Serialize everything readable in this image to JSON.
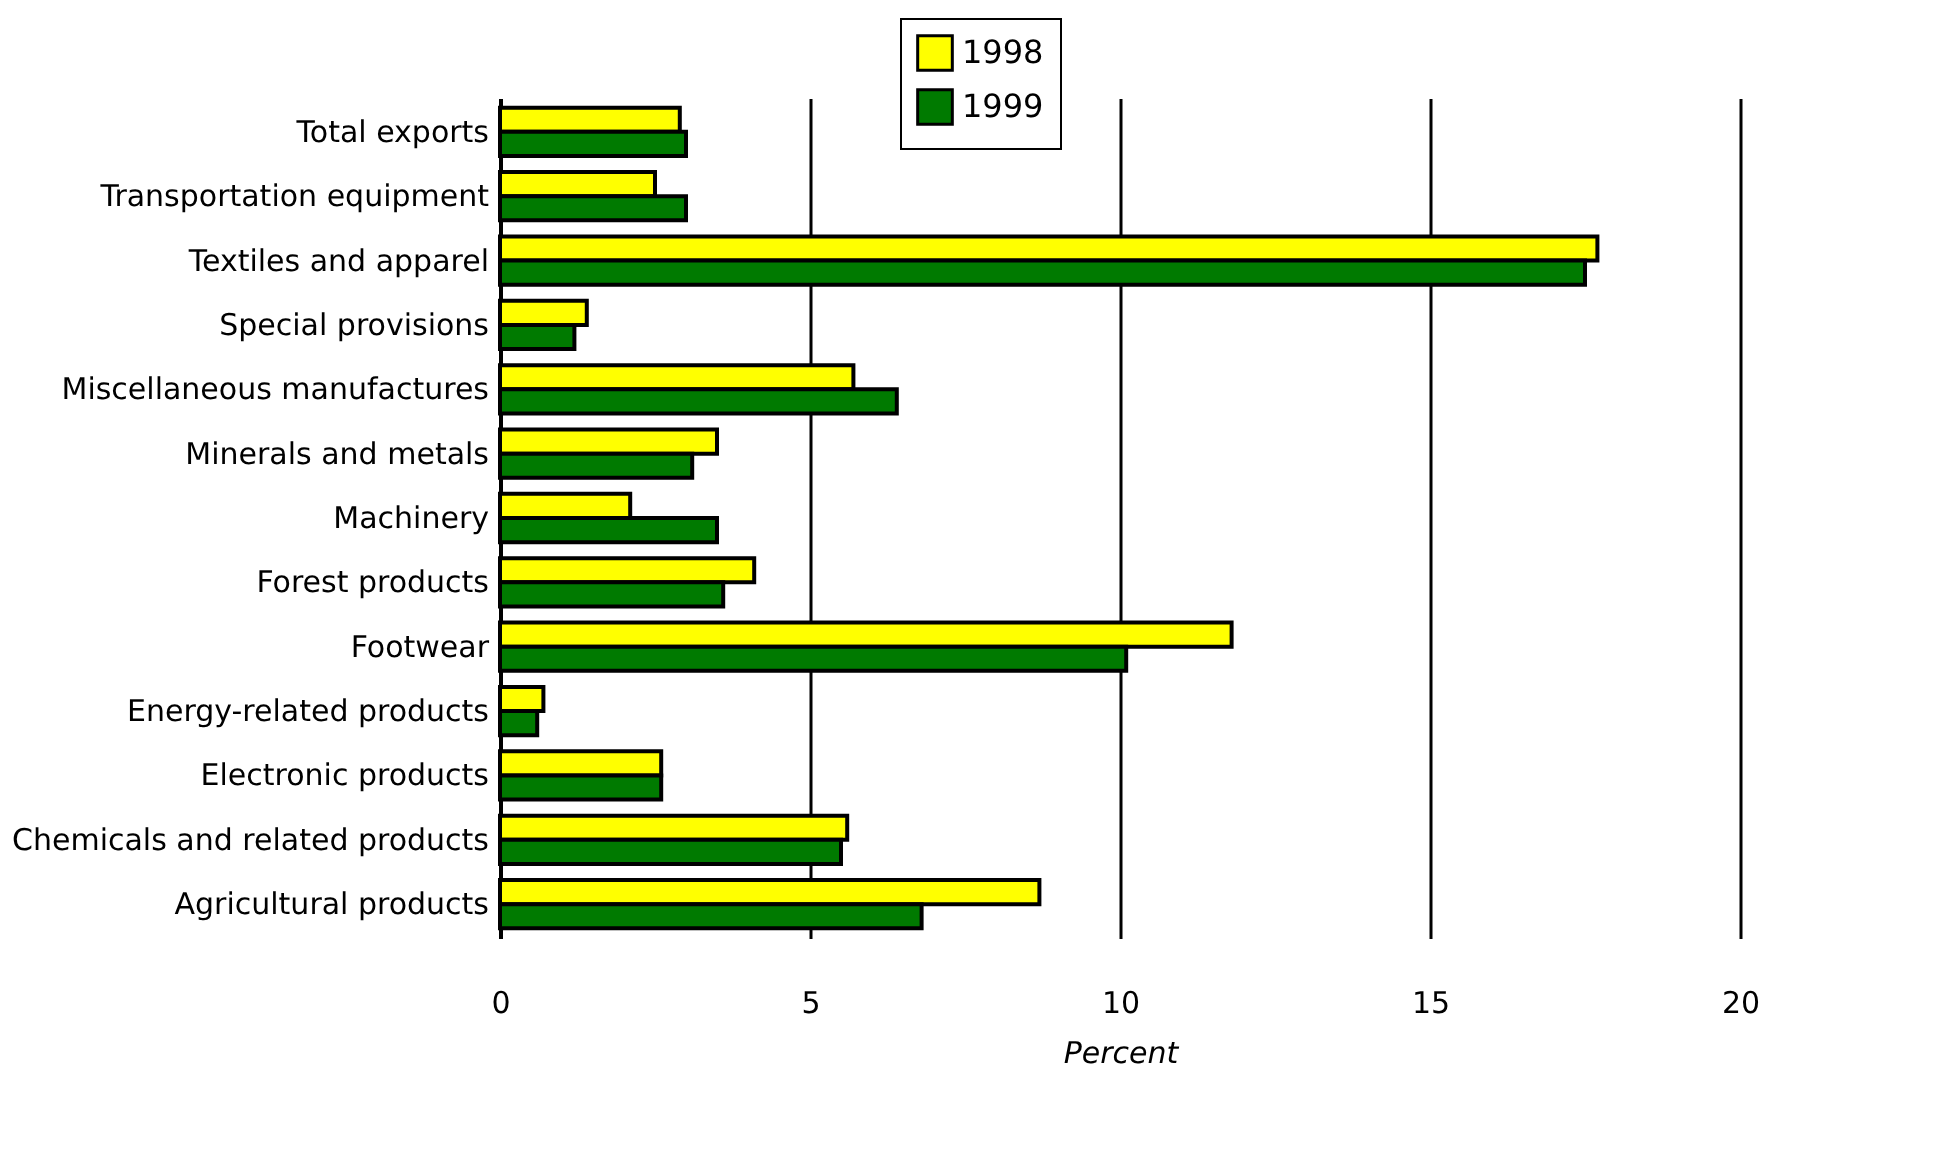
{
  "chart_data": {
    "type": "bar",
    "orientation": "horizontal",
    "xlabel": "Percent",
    "categories": [
      "Total exports",
      "Transportation equipment",
      "Textiles and apparel",
      "Special provisions",
      "Miscellaneous manufactures",
      "Minerals and metals",
      "Machinery",
      "Forest products",
      "Footwear",
      "Energy-related products",
      "Electronic products",
      "Chemicals and related products",
      "Agricultural products"
    ],
    "series": [
      {
        "name": "1998",
        "color": "#ffff00",
        "values": [
          2.9,
          2.5,
          17.7,
          1.4,
          5.7,
          3.5,
          2.1,
          4.1,
          11.8,
          0.7,
          2.6,
          5.6,
          8.7
        ]
      },
      {
        "name": "1999",
        "color": "#007a00",
        "values": [
          3.0,
          3.0,
          17.5,
          1.2,
          6.4,
          3.1,
          3.5,
          3.6,
          10.1,
          0.6,
          2.6,
          5.5,
          6.8
        ]
      }
    ],
    "xlim": [
      0,
      20
    ],
    "xticks": [
      0,
      5,
      10,
      15,
      20
    ],
    "grid": "x",
    "legend": "top"
  }
}
